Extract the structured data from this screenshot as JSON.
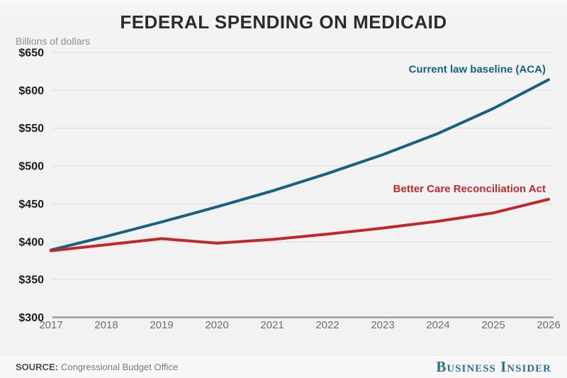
{
  "chart_data": {
    "type": "line",
    "title": "FEDERAL SPENDING ON MEDICAID",
    "ylabel": "Billions of dollars",
    "x": [
      2017,
      2018,
      2019,
      2020,
      2021,
      2022,
      2023,
      2024,
      2025,
      2026
    ],
    "series": [
      {
        "name": "Current law baseline (ACA)",
        "color": "#1a617f",
        "values": [
          389,
          407,
          426,
          446,
          467,
          490,
          515,
          543,
          576,
          614
        ]
      },
      {
        "name": "Better Care Reconciliation Act",
        "color": "#c0282e",
        "values": [
          388,
          396,
          404,
          398,
          403,
          410,
          418,
          427,
          438,
          456
        ]
      }
    ],
    "ylim": [
      300,
      650
    ],
    "ytick_step": 50,
    "ytick_prefix": "$",
    "grid": true,
    "legend": "direct-labels-right"
  },
  "footer": {
    "source_label": "SOURCE:",
    "source_value": "Congressional Budget Office",
    "brand": "Business Insider"
  },
  "colors": {
    "background": "#f2f2f2",
    "gridline": "#e3e3e3",
    "axis_baseline": "#9c9c9c",
    "title_text": "#2b2b2b",
    "tick_text": "#6e6e6e",
    "brand_teal": "#2f6f8f"
  }
}
